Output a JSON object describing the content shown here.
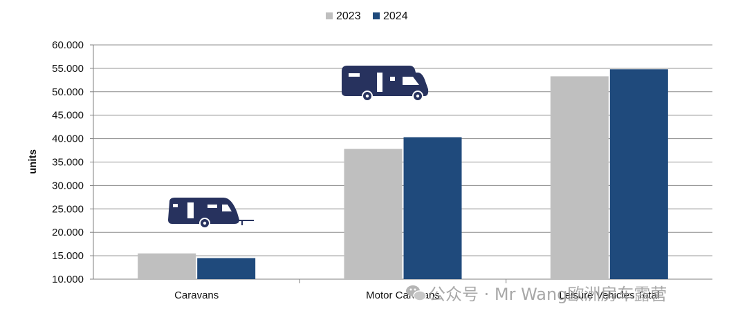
{
  "chart_data": {
    "type": "bar",
    "categories": [
      "Caravans",
      "Motor Caravans",
      "Leisure Vehicles Total"
    ],
    "series": [
      {
        "name": "2023",
        "color": "#bfbfbf",
        "values": [
          15500,
          37800,
          53300
        ]
      },
      {
        "name": "2024",
        "color": "#1f4a7c",
        "values": [
          14500,
          40300,
          54800
        ]
      }
    ],
    "ylabel": "units",
    "ylim": [
      10000,
      60000
    ],
    "ytick_step": 5000,
    "ytick_labels": [
      "10.000",
      "15.000",
      "20.000",
      "25.000",
      "30.000",
      "35.000",
      "40.000",
      "45.000",
      "50.000",
      "55.000",
      "60.000"
    ],
    "grid": true,
    "legend": "top-center",
    "icons": [
      "caravan-icon",
      "motorhome-icon"
    ],
    "icon_color": "#27325e"
  },
  "watermark": {
    "icon": "wechat-icon",
    "text": "公众号 · Mr Wang欧洲房车露营"
  }
}
